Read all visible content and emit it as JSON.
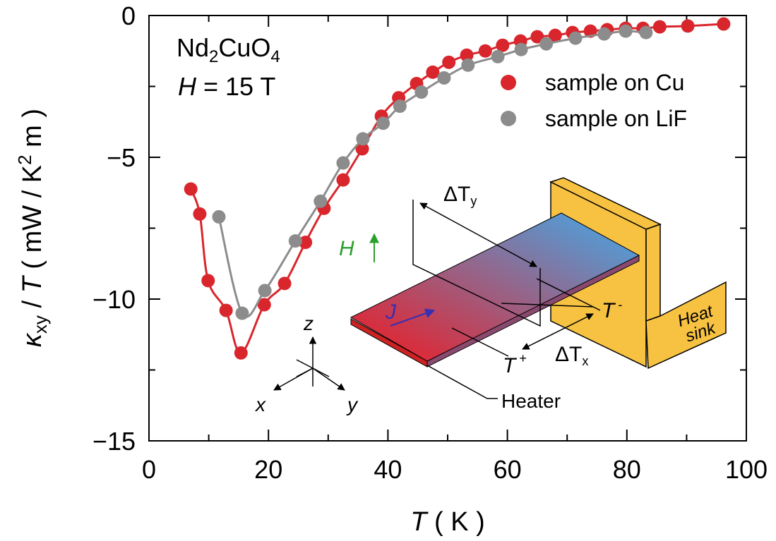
{
  "chart_data": {
    "type": "scatter",
    "xlabel": [
      "T",
      " ( K )"
    ],
    "ylabel": [
      "κ",
      "xy",
      " / ",
      "T",
      " ( mW / K",
      "2",
      " m )"
    ],
    "xlim": [
      0,
      100
    ],
    "ylim": [
      -15,
      0
    ],
    "xticks": [
      0,
      20,
      40,
      60,
      80,
      100
    ],
    "xminor": [
      10,
      30,
      50,
      70,
      90
    ],
    "yticks": [
      {
        "value": -15,
        "label": "−15"
      },
      {
        "value": -10,
        "label": "−10"
      },
      {
        "value": -5,
        "label": "−5"
      },
      0
    ],
    "yminor": [
      -12.5,
      -7.5,
      -2.5
    ],
    "legend": "upper right",
    "series": [
      {
        "name": "sample on Cu",
        "color": "#d9262c",
        "x": [
          7.0,
          8.5,
          9.9,
          12.9,
          15.4,
          19.3,
          22.7,
          26.2,
          29.3,
          32.5,
          35.7,
          38.9,
          41.8,
          44.8,
          47.5,
          50.2,
          53.2,
          56.3,
          59.2,
          62.2,
          65.0,
          68.0,
          70.9,
          73.9,
          76.7,
          79.8,
          82.7,
          85.5,
          90.2,
          96.2
        ],
        "values": [
          -6.12,
          -7.0,
          -9.35,
          -10.4,
          -11.9,
          -10.2,
          -9.45,
          -8.0,
          -6.8,
          -5.8,
          -4.7,
          -3.55,
          -2.9,
          -2.4,
          -2.0,
          -1.65,
          -1.4,
          -1.25,
          -1.05,
          -0.9,
          -0.75,
          -0.7,
          -0.6,
          -0.55,
          -0.5,
          -0.45,
          -0.45,
          -0.4,
          -0.37,
          -0.3
        ]
      },
      {
        "name": "sample on LiF",
        "color": "#8c8c8c",
        "x": [
          11.7,
          15.6,
          19.4,
          24.5,
          28.7,
          32.5,
          35.8,
          39.2,
          42.0,
          45.6,
          49.4,
          53.4,
          58.4,
          62.3,
          66.5,
          71.4,
          76.2,
          79.8,
          83.2
        ],
        "values": [
          -7.1,
          -10.5,
          -9.7,
          -7.95,
          -6.55,
          -5.2,
          -4.35,
          -3.8,
          -3.2,
          -2.7,
          -2.2,
          -1.75,
          -1.45,
          -1.2,
          -1.0,
          -0.8,
          -0.65,
          -0.55,
          -0.6
        ]
      }
    ],
    "annotations": {
      "compound": [
        "Nd",
        "2",
        "CuO",
        "4"
      ],
      "field": [
        "H",
        " = 15 T"
      ]
    },
    "inset": {
      "delta_ty": [
        "ΔT",
        "y"
      ],
      "h": "H",
      "j": "J",
      "t_minus": [
        "T",
        " -"
      ],
      "t_plus": [
        "T",
        " +"
      ],
      "delta_tx": [
        "ΔT",
        "x"
      ],
      "heat_sink": [
        "Heat",
        "sink"
      ],
      "heater": "Heater",
      "axes": [
        "z",
        "x",
        "y"
      ]
    }
  }
}
